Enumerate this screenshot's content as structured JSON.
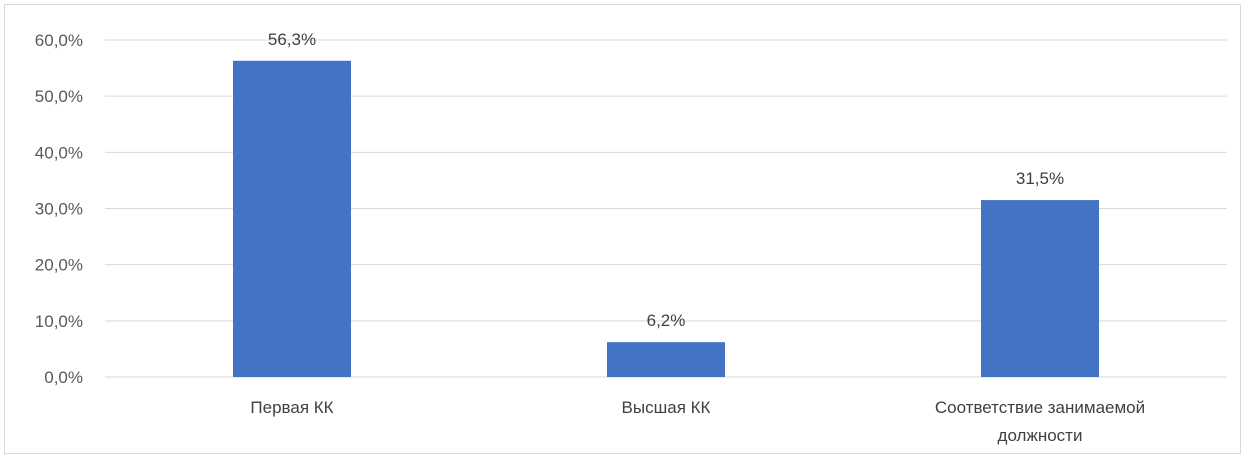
{
  "chart_data": {
    "type": "bar",
    "categories": [
      "Первая КК",
      "Высшая КК",
      [
        "Соответствие занимаемой",
        "должности"
      ]
    ],
    "values": [
      56.3,
      6.2,
      31.5
    ],
    "data_labels": [
      "56,3%",
      "6,2%",
      "31,5%"
    ],
    "y_ticks": [
      "0,0%",
      "10,0%",
      "20,0%",
      "30,0%",
      "40,0%",
      "50,0%",
      "60,0%"
    ],
    "ylim": [
      0,
      60
    ],
    "grid": true,
    "legend": "none",
    "bar_color": "#4472c4",
    "grid_color": "#d9d9d9"
  }
}
